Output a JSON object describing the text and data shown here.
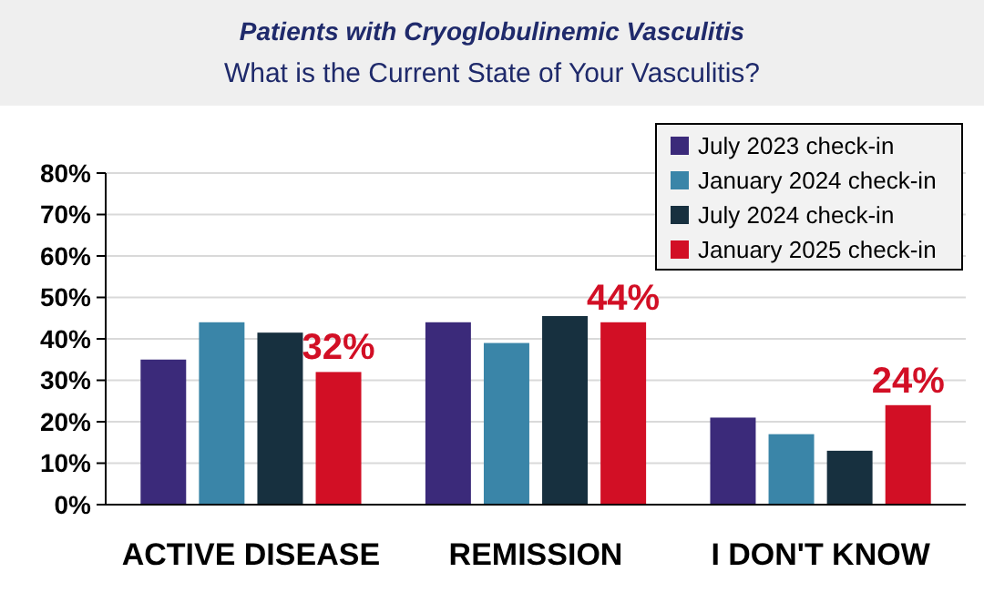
{
  "chart_data": {
    "type": "bar",
    "title": "Patients with Cryoglobulinemic Vasculitis",
    "subtitle": "What is the Current State of Your Vasculitis?",
    "categories": [
      "ACTIVE DISEASE",
      "REMISSION",
      "I DON'T KNOW"
    ],
    "series": [
      {
        "name": "July 2023 check-in",
        "color": "#3b2a7a",
        "values": [
          35,
          44,
          21
        ]
      },
      {
        "name": "January 2024 check-in",
        "color": "#3a85a8",
        "values": [
          44,
          39,
          17
        ]
      },
      {
        "name": "July 2024 check-in",
        "color": "#17303f",
        "values": [
          41.5,
          45.5,
          13
        ]
      },
      {
        "name": "January 2025 check-in",
        "color": "#d20f25",
        "values": [
          32,
          44,
          24
        ],
        "value_labels": [
          "32%",
          "44%",
          "24%"
        ]
      }
    ],
    "ylim": [
      0,
      80
    ],
    "yticks": [
      {
        "value": 0,
        "label": "0%"
      },
      {
        "value": 10,
        "label": "10%"
      },
      {
        "value": 20,
        "label": "20%"
      },
      {
        "value": 30,
        "label": "30%"
      },
      {
        "value": 40,
        "label": "40%"
      },
      {
        "value": 50,
        "label": "50%"
      },
      {
        "value": 60,
        "label": "60%"
      },
      {
        "value": 70,
        "label": "70%"
      },
      {
        "value": 80,
        "label": "80%"
      }
    ],
    "grid": "y",
    "legend": "top right"
  }
}
